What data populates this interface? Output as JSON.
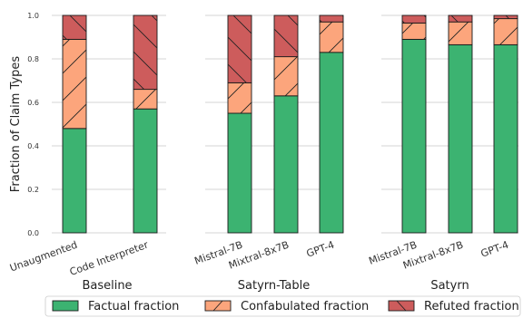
{
  "chart_data": {
    "type": "bar",
    "stacked": true,
    "ylabel": "Fraction of Claim Types",
    "ylim": [
      0,
      1.0
    ],
    "yticks": [
      "0.0",
      "0.2",
      "0.4",
      "0.6",
      "0.8",
      "1.0"
    ],
    "grid": "horizontal",
    "legend_placement": "bottom",
    "series": [
      {
        "name": "Factual fraction",
        "color": "#3cb371",
        "hatch": "none"
      },
      {
        "name": "Confabulated fraction",
        "color": "#fca57c",
        "hatch": "forward-slash"
      },
      {
        "name": "Refuted fraction",
        "color": "#cd5c5c",
        "hatch": "back-slash"
      }
    ],
    "panels": [
      {
        "title": "Baseline",
        "categories": [
          "Unaugmented",
          "Code Interpreter"
        ],
        "values": {
          "Factual fraction": [
            0.48,
            0.57
          ],
          "Confabulated fraction": [
            0.41,
            0.09
          ],
          "Refuted fraction": [
            0.11,
            0.34
          ]
        }
      },
      {
        "title": "Satyrn-Table",
        "categories": [
          "Mistral-7B",
          "Mixtral-8x7B",
          "GPT-4"
        ],
        "values": {
          "Factual fraction": [
            0.55,
            0.63,
            0.83
          ],
          "Confabulated fraction": [
            0.14,
            0.18,
            0.14
          ],
          "Refuted fraction": [
            0.31,
            0.19,
            0.03
          ]
        }
      },
      {
        "title": "Satyrn",
        "categories": [
          "Mistral-7B",
          "Mixtral-8x7B",
          "GPT-4"
        ],
        "values": {
          "Factual fraction": [
            0.89,
            0.865,
            0.865
          ],
          "Confabulated fraction": [
            0.075,
            0.105,
            0.12
          ],
          "Refuted fraction": [
            0.035,
            0.03,
            0.015
          ]
        }
      }
    ]
  }
}
